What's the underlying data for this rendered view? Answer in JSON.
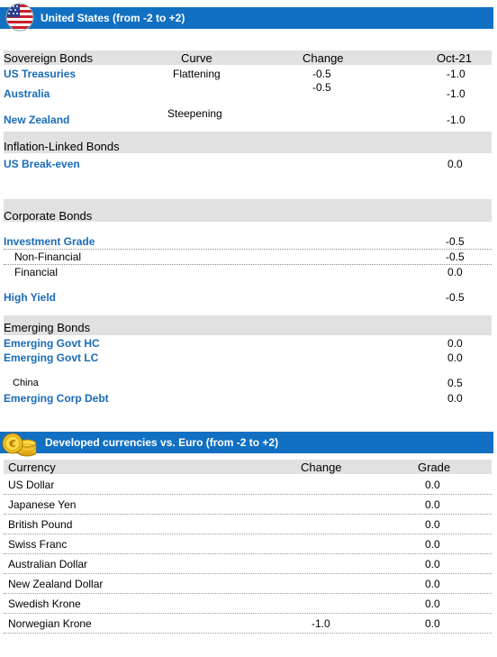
{
  "bonds_section": {
    "title": "United States (from -2 to +2)",
    "headers": {
      "category": "Sovereign Bonds",
      "curve": "Curve",
      "change": "Change",
      "period": "Oct-21"
    },
    "sovereign": [
      {
        "name": "US Treasuries",
        "curve": "Flattening",
        "change": "-0.5",
        "value": "-1.0"
      },
      {
        "name": "Australia",
        "curve": "",
        "change": "-0.5",
        "value": "-1.0"
      },
      {
        "name": "New Zealand",
        "curve": "Steepening",
        "change": "",
        "value": "-1.0"
      }
    ],
    "inflation": {
      "title": "Inflation-Linked Bonds",
      "rows": [
        {
          "name": "US Break-even",
          "value": "0.0"
        }
      ]
    },
    "corporate": {
      "title": "Corporate Bonds",
      "rows": [
        {
          "name": "Investment Grade",
          "value": "-0.5"
        },
        {
          "name": "Non-Financial",
          "value": "-0.5"
        },
        {
          "name": "Financial",
          "value": "0.0"
        },
        {
          "name": "High Yield",
          "value": "-0.5"
        }
      ]
    },
    "emerging": {
      "title": "Emerging Bonds",
      "rows": [
        {
          "name": "Emerging Govt HC",
          "value": "0.0"
        },
        {
          "name": "Emerging Govt LC",
          "value": "0.0"
        },
        {
          "name": "China",
          "value": "0.5"
        },
        {
          "name": "Emerging Corp Debt",
          "value": "0.0"
        }
      ]
    }
  },
  "currency_section": {
    "title": "Developed currencies vs. Euro (from -2 to +2)",
    "headers": {
      "currency": "Currency",
      "change": "Change",
      "grade": "Grade"
    },
    "rows": [
      {
        "name": "US Dollar",
        "change": "",
        "grade": "0.0"
      },
      {
        "name": "Japanese Yen",
        "change": "",
        "grade": "0.0"
      },
      {
        "name": "British Pound",
        "change": "",
        "grade": "0.0"
      },
      {
        "name": "Swiss Franc",
        "change": "",
        "grade": "0.0"
      },
      {
        "name": "Australian Dollar",
        "change": "",
        "grade": "0.0"
      },
      {
        "name": "New Zealand Dollar",
        "change": "",
        "grade": "0.0"
      },
      {
        "name": "Swedish Krone",
        "change": "",
        "grade": "0.0"
      },
      {
        "name": "Norwegian Krone",
        "change": "-1.0",
        "grade": "0.0"
      }
    ]
  },
  "colors": {
    "banner": "#1270c2",
    "link": "#1a6bb7",
    "header_band": "#e1e1e1"
  },
  "icons": {
    "bonds": "us-flag-icon",
    "currencies": "gold-coins-icon"
  }
}
